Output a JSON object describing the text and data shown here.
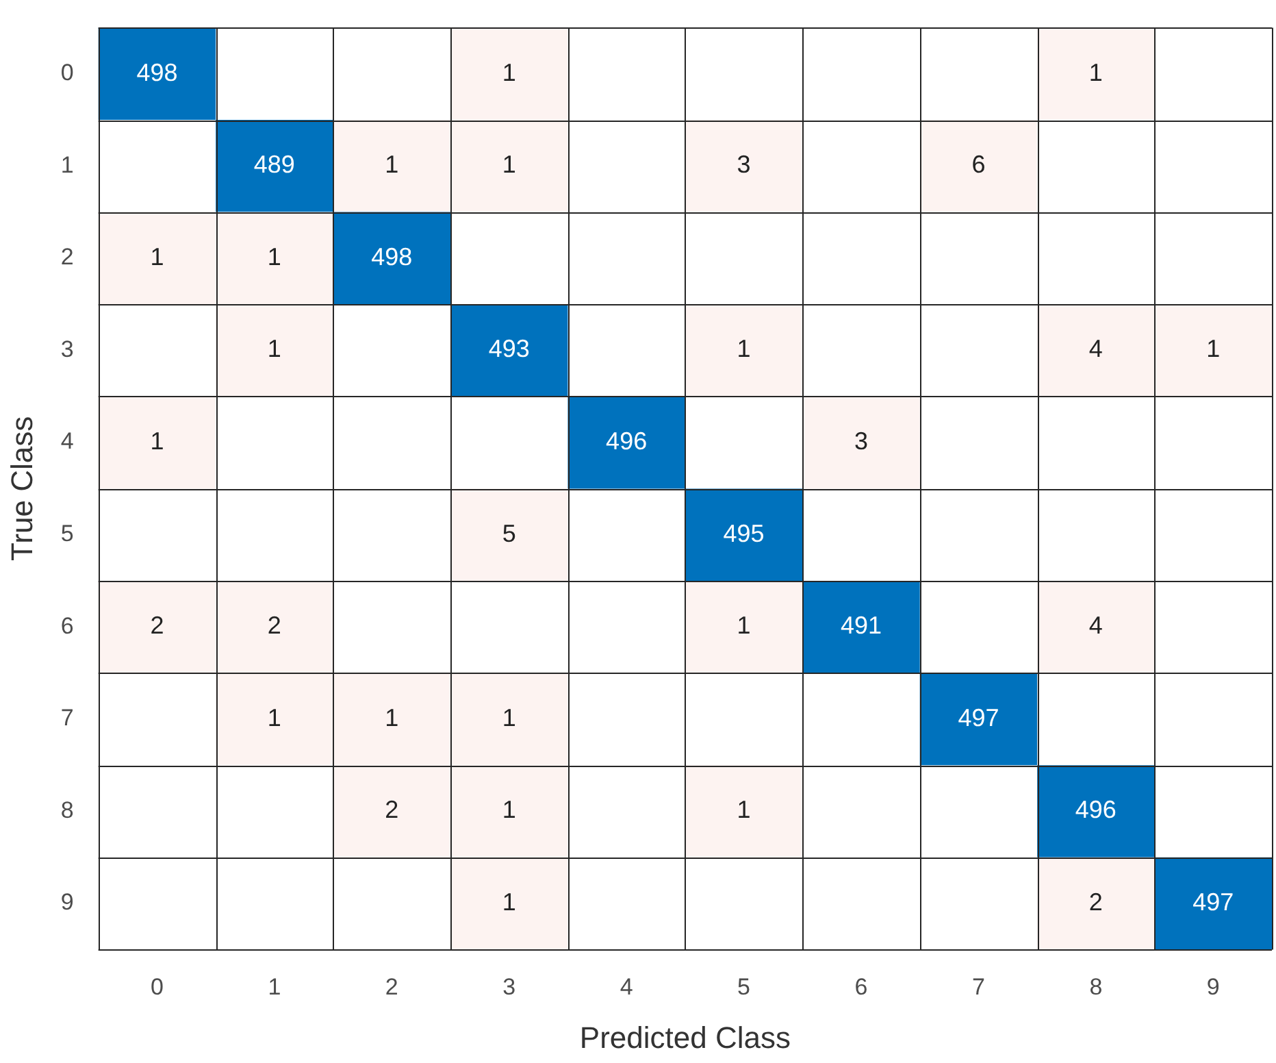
{
  "chart_data": {
    "type": "heatmap",
    "xlabel": "Predicted Class",
    "ylabel": "True Class",
    "color": "#0072bd",
    "data_labels": true,
    "grid": true,
    "categories": [
      "0",
      "1",
      "2",
      "3",
      "4",
      "5",
      "6",
      "7",
      "8",
      "9"
    ],
    "y_categories": [
      "0",
      "1",
      "2",
      "3",
      "4",
      "5",
      "6",
      "7",
      "8",
      "9"
    ],
    "cells": [
      [
        498,
        null,
        null,
        1,
        null,
        null,
        null,
        null,
        1,
        null
      ],
      [
        null,
        489,
        1,
        1,
        null,
        3,
        null,
        6,
        null,
        null
      ],
      [
        1,
        1,
        498,
        null,
        null,
        null,
        null,
        null,
        null,
        null
      ],
      [
        null,
        1,
        null,
        493,
        null,
        1,
        null,
        null,
        4,
        1
      ],
      [
        1,
        null,
        null,
        null,
        496,
        null,
        3,
        null,
        null,
        null
      ],
      [
        null,
        null,
        null,
        5,
        null,
        495,
        null,
        null,
        null,
        null
      ],
      [
        2,
        2,
        null,
        null,
        null,
        1,
        491,
        null,
        4,
        null
      ],
      [
        null,
        1,
        1,
        1,
        null,
        null,
        null,
        497,
        null,
        null
      ],
      [
        null,
        null,
        2,
        1,
        null,
        1,
        null,
        null,
        496,
        null
      ],
      [
        null,
        null,
        null,
        1,
        null,
        null,
        null,
        null,
        2,
        497
      ]
    ]
  }
}
